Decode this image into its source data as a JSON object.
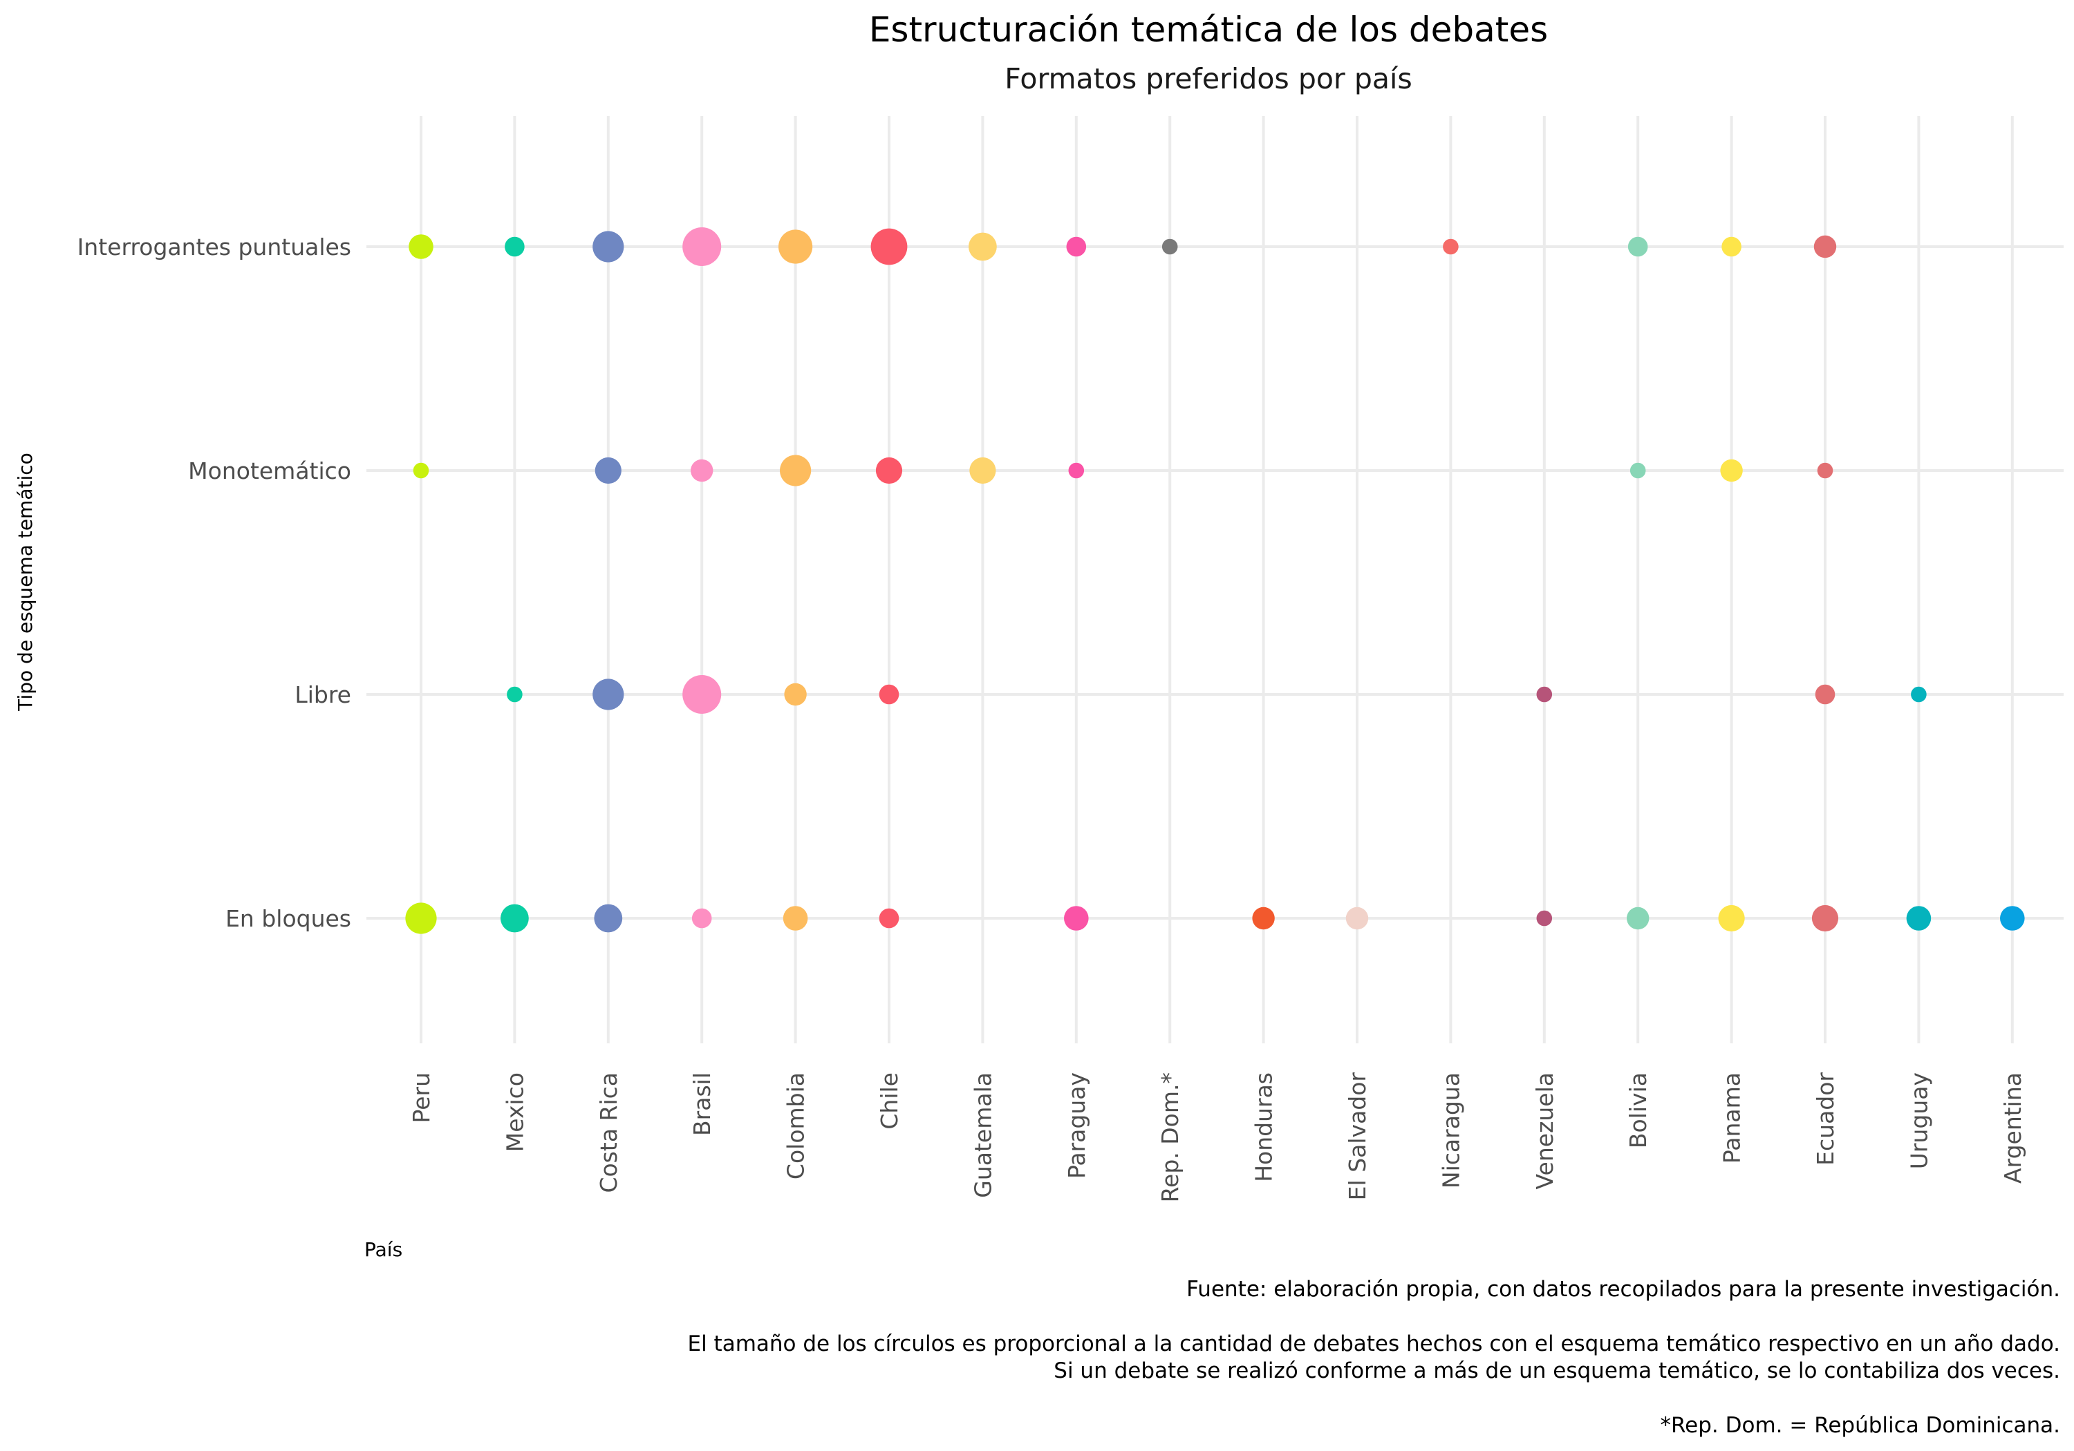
{
  "chart_data": {
    "type": "scatter",
    "title": "Estructuración temática de los debates",
    "subtitle": "Formatos preferidos por país",
    "xlabel": "País",
    "ylabel": "Tipo de esquema temático",
    "grid": true,
    "legend": "none",
    "categories": [
      "Peru",
      "Mexico",
      "Costa Rica",
      "Brasil",
      "Colombia",
      "Chile",
      "Guatemala",
      "Paraguay",
      "Rep. Dom.*",
      "Honduras",
      "El Salvador",
      "Nicaragua",
      "Venezuela",
      "Bolivia",
      "Panama",
      "Ecuador",
      "Uruguay",
      "Argentina"
    ],
    "y_categories": [
      "Interrogantes puntuales",
      "Monotemático",
      "Libre",
      "En bloques"
    ],
    "country_colors": {
      "Peru": "#c8f10e",
      "Mexico": "#0bcea3",
      "Costa Rica": "#6f87c2",
      "Brasil": "#fd8fc2",
      "Colombia": "#fdbc5e",
      "Chile": "#fb5768",
      "Guatemala": "#fdd46c",
      "Paraguay": "#fa53a6",
      "Rep. Dom.*": "#7a7a7a",
      "Honduras": "#f2592d",
      "El Salvador": "#f1d2c9",
      "Nicaragua": "#f56a67",
      "Venezuela": "#b65479",
      "Bolivia": "#88d6b6",
      "Panama": "#fde54a",
      "Ecuador": "#e26f72",
      "Uruguay": "#05b3bd",
      "Argentina": "#08a2e1"
    },
    "size_unit": "debates por año",
    "points": [
      {
        "x": "Peru",
        "y": "Interrogantes puntuales",
        "size": 2
      },
      {
        "x": "Mexico",
        "y": "Interrogantes puntuales",
        "size": 1
      },
      {
        "x": "Costa Rica",
        "y": "Interrogantes puntuales",
        "size": 4
      },
      {
        "x": "Brasil",
        "y": "Interrogantes puntuales",
        "size": 7
      },
      {
        "x": "Colombia",
        "y": "Interrogantes puntuales",
        "size": 5
      },
      {
        "x": "Chile",
        "y": "Interrogantes puntuales",
        "size": 6
      },
      {
        "x": "Guatemala",
        "y": "Interrogantes puntuales",
        "size": 3
      },
      {
        "x": "Paraguay",
        "y": "Interrogantes puntuales",
        "size": 1
      },
      {
        "x": "Rep. Dom.*",
        "y": "Interrogantes puntuales",
        "size": 0.4
      },
      {
        "x": "Nicaragua",
        "y": "Interrogantes puntuales",
        "size": 0.4
      },
      {
        "x": "Bolivia",
        "y": "Interrogantes puntuales",
        "size": 1
      },
      {
        "x": "Panama",
        "y": "Interrogantes puntuales",
        "size": 1
      },
      {
        "x": "Ecuador",
        "y": "Interrogantes puntuales",
        "size": 1.5
      },
      {
        "x": "Peru",
        "y": "Monotemático",
        "size": 0.4
      },
      {
        "x": "Costa Rica",
        "y": "Monotemático",
        "size": 2.5
      },
      {
        "x": "Brasil",
        "y": "Monotemático",
        "size": 1.5
      },
      {
        "x": "Colombia",
        "y": "Monotemático",
        "size": 4
      },
      {
        "x": "Chile",
        "y": "Monotemático",
        "size": 2.5
      },
      {
        "x": "Guatemala",
        "y": "Monotemático",
        "size": 2.5
      },
      {
        "x": "Paraguay",
        "y": "Monotemático",
        "size": 0.4
      },
      {
        "x": "Bolivia",
        "y": "Monotemático",
        "size": 0.4
      },
      {
        "x": "Panama",
        "y": "Monotemático",
        "size": 1.5
      },
      {
        "x": "Ecuador",
        "y": "Monotemático",
        "size": 0.4
      },
      {
        "x": "Mexico",
        "y": "Libre",
        "size": 0.4
      },
      {
        "x": "Costa Rica",
        "y": "Libre",
        "size": 4
      },
      {
        "x": "Brasil",
        "y": "Libre",
        "size": 7
      },
      {
        "x": "Colombia",
        "y": "Libre",
        "size": 1.5
      },
      {
        "x": "Chile",
        "y": "Libre",
        "size": 1
      },
      {
        "x": "Venezuela",
        "y": "Libre",
        "size": 0.4
      },
      {
        "x": "Ecuador",
        "y": "Libre",
        "size": 1
      },
      {
        "x": "Uruguay",
        "y": "Libre",
        "size": 0.4
      },
      {
        "x": "Peru",
        "y": "En bloques",
        "size": 4
      },
      {
        "x": "Mexico",
        "y": "En bloques",
        "size": 3
      },
      {
        "x": "Costa Rica",
        "y": "En bloques",
        "size": 3
      },
      {
        "x": "Brasil",
        "y": "En bloques",
        "size": 1
      },
      {
        "x": "Colombia",
        "y": "En bloques",
        "size": 2
      },
      {
        "x": "Chile",
        "y": "En bloques",
        "size": 1
      },
      {
        "x": "Paraguay",
        "y": "En bloques",
        "size": 2
      },
      {
        "x": "Honduras",
        "y": "En bloques",
        "size": 1.5
      },
      {
        "x": "El Salvador",
        "y": "En bloques",
        "size": 1.5
      },
      {
        "x": "Venezuela",
        "y": "En bloques",
        "size": 0.4
      },
      {
        "x": "Bolivia",
        "y": "En bloques",
        "size": 1.5
      },
      {
        "x": "Panama",
        "y": "En bloques",
        "size": 2.5
      },
      {
        "x": "Ecuador",
        "y": "En bloques",
        "size": 2.5
      },
      {
        "x": "Uruguay",
        "y": "En bloques",
        "size": 2
      },
      {
        "x": "Argentina",
        "y": "En bloques",
        "size": 2
      }
    ]
  },
  "caption": {
    "source": "Fuente: elaboración propia, con datos recopilados para la presente investigación.",
    "note_line1": "El tamaño de los círculos es proporcional a la cantidad de debates hechos con el esquema temático respectivo en un año dado.",
    "note_line2": "Si un debate se realizó conforme a más de un esquema temático, se lo contabiliza dos veces.",
    "footnote": "*Rep. Dom. = República Dominicana."
  }
}
